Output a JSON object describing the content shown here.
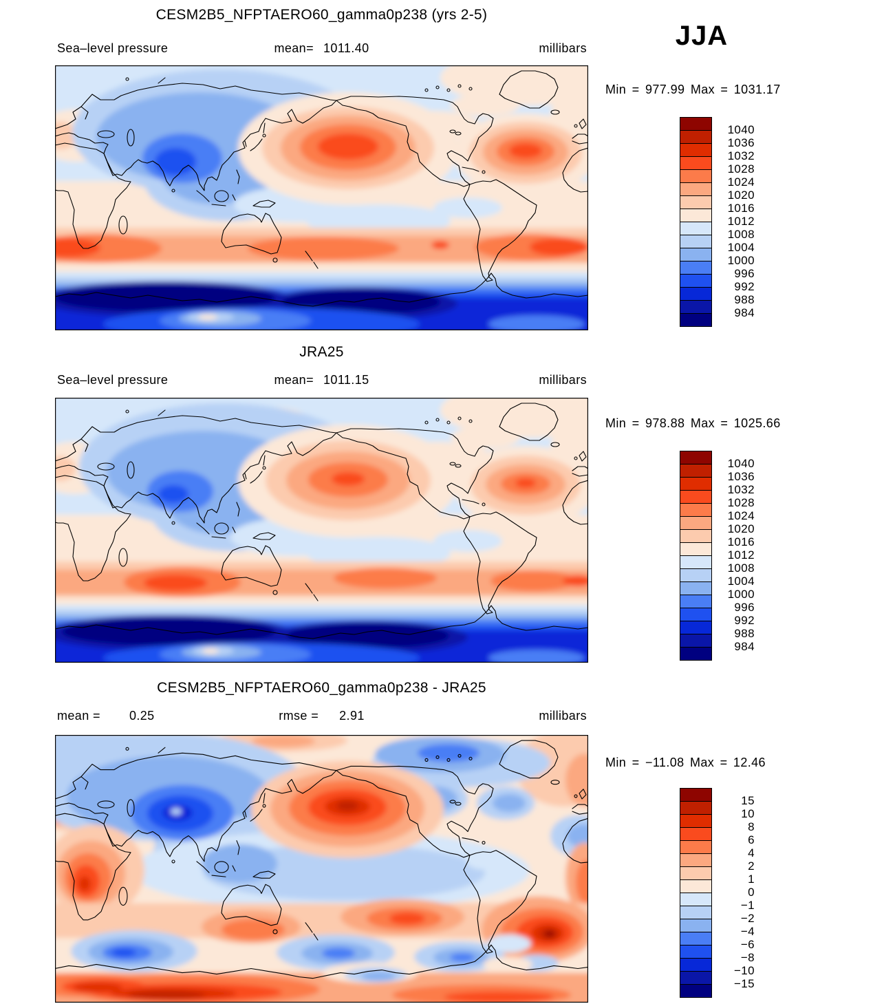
{
  "season_label": "JJA",
  "palette": [
    "#8E0500",
    "#C02000",
    "#E02D00",
    "#FA4B1E",
    "#FC7B4A",
    "#FBA880",
    "#FCCBAE",
    "#FCE8D8",
    "#D6E7FA",
    "#B7D1F5",
    "#8AB2F0",
    "#4A7EF5",
    "#1F51F0",
    "#0728D8",
    "#0A16A8",
    "#000080"
  ],
  "panels": [
    {
      "title": "CESM2B5_NFPTAERO60_gamma0p238 (yrs 2-5)",
      "field": "Sea–level pressure",
      "mean_label": "mean=",
      "mean_value": "1011.40",
      "units": "millibars",
      "min_label": "Min =",
      "min_value": "977.99",
      "max_label": "Max =",
      "max_value": "1031.17",
      "colorbar_labels": [
        "1040",
        "1036",
        "1032",
        "1028",
        "1024",
        "1020",
        "1016",
        "1012",
        "1008",
        "1004",
        "1000",
        "996",
        "992",
        "988",
        "984"
      ]
    },
    {
      "title": "JRA25",
      "field": "Sea–level pressure",
      "mean_label": "mean=",
      "mean_value": "1011.15",
      "units": "millibars",
      "min_label": "Min =",
      "min_value": "978.88",
      "max_label": "Max =",
      "max_value": "1025.66",
      "colorbar_labels": [
        "1040",
        "1036",
        "1032",
        "1028",
        "1024",
        "1020",
        "1016",
        "1012",
        "1008",
        "1004",
        "1000",
        "996",
        "992",
        "988",
        "984"
      ]
    },
    {
      "title": "CESM2B5_NFPTAERO60_gamma0p238 - JRA25",
      "mean_label": "mean =",
      "mean_value": "0.25",
      "rmse_label": "rmse =",
      "rmse_value": "2.91",
      "units": "millibars",
      "min_label": "Min =",
      "min_value": "−11.08",
      "max_label": "Max =",
      "max_value": "12.46",
      "colorbar_labels": [
        "15",
        "10",
        "8",
        "6",
        "4",
        "2",
        "1",
        "0",
        "−1",
        "−2",
        "−4",
        "−6",
        "−8",
        "−10",
        "−15"
      ]
    }
  ],
  "chart_data": [
    {
      "type": "heatmap",
      "panel": "model",
      "title": "CESM2B5_NFPTAERO60_gamma0p238 (yrs 2-5)",
      "variable": "Sea-level pressure",
      "season": "JJA",
      "units": "millibars",
      "mean": 1011.4,
      "min": 977.99,
      "max": 1031.17,
      "contour_levels": [
        984,
        988,
        992,
        996,
        1000,
        1004,
        1008,
        1012,
        1016,
        1020,
        1024,
        1028,
        1032,
        1036,
        1040
      ],
      "colormap": "blue-white-red",
      "legend_position": "right",
      "projection": "equirectangular world map, 0E-360E",
      "notable_features": [
        "deep monsoon low over South Asia",
        "subtropical highs over North Pacific and North Atlantic",
        "zonal subtropical high belt ~30S",
        "circumpolar trough of very low pressure around Antarctica"
      ]
    },
    {
      "type": "heatmap",
      "panel": "reference",
      "title": "JRA25",
      "variable": "Sea-level pressure",
      "season": "JJA",
      "units": "millibars",
      "mean": 1011.15,
      "min": 978.88,
      "max": 1025.66,
      "contour_levels": [
        984,
        988,
        992,
        996,
        1000,
        1004,
        1008,
        1012,
        1016,
        1020,
        1024,
        1028,
        1032,
        1036,
        1040
      ],
      "colormap": "blue-white-red",
      "legend_position": "right",
      "projection": "equirectangular world map, 0E-360E",
      "notable_features": [
        "same pattern as model but weaker subtropical highs",
        "strong South Indian Ocean high",
        "circumpolar trough around Antarctica"
      ]
    },
    {
      "type": "heatmap",
      "panel": "difference",
      "title": "CESM2B5_NFPTAERO60_gamma0p238 - JRA25",
      "variable": "Sea-level pressure difference",
      "season": "JJA",
      "units": "millibars",
      "mean": 0.25,
      "rmse": 2.91,
      "min": -11.08,
      "max": 12.46,
      "contour_levels": [
        -15,
        -10,
        -8,
        -6,
        -4,
        -2,
        -1,
        0,
        1,
        2,
        4,
        6,
        8,
        10,
        15
      ],
      "colormap": "blue-white-red",
      "legend_position": "right",
      "projection": "equirectangular world map, 0E-360E",
      "notable_features": [
        "negative bias over central Asia/Tibet",
        "strong positive bias over North Pacific",
        "positive bias over South Atlantic and around Antarctica",
        "alternating biases in Southern Ocean"
      ]
    }
  ]
}
